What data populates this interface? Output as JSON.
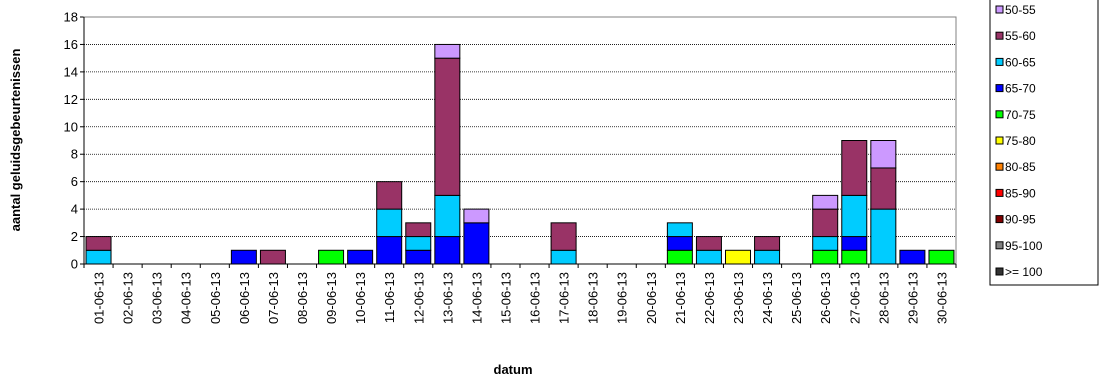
{
  "chart_data": {
    "type": "bar",
    "stacked": true,
    "title": "",
    "xlabel": "datum",
    "ylabel": "aantal geluidsgebeurtenissen",
    "ylim": [
      0,
      18
    ],
    "yticks": [
      0,
      2,
      4,
      6,
      8,
      10,
      12,
      14,
      16,
      18
    ],
    "grid": true,
    "legend_position": "right",
    "categories": [
      "01-06-13",
      "02-06-13",
      "03-06-13",
      "04-06-13",
      "05-06-13",
      "06-06-13",
      "07-06-13",
      "08-06-13",
      "09-06-13",
      "10-06-13",
      "11-06-13",
      "12-06-13",
      "13-06-13",
      "14-06-13",
      "15-06-13",
      "16-06-13",
      "17-06-13",
      "18-06-13",
      "19-06-13",
      "20-06-13",
      "21-06-13",
      "22-06-13",
      "23-06-13",
      "24-06-13",
      "25-06-13",
      "26-06-13",
      "27-06-13",
      "28-06-13",
      "29-06-13",
      "30-06-13"
    ],
    "series": [
      {
        "name": ">= 100",
        "color": "#333333",
        "values": [
          0,
          0,
          0,
          0,
          0,
          0,
          0,
          0,
          0,
          0,
          0,
          0,
          0,
          0,
          0,
          0,
          0,
          0,
          0,
          0,
          0,
          0,
          0,
          0,
          0,
          0,
          0,
          0,
          0,
          0
        ]
      },
      {
        "name": "95-100",
        "color": "#808080",
        "values": [
          0,
          0,
          0,
          0,
          0,
          0,
          0,
          0,
          0,
          0,
          0,
          0,
          0,
          0,
          0,
          0,
          0,
          0,
          0,
          0,
          0,
          0,
          0,
          0,
          0,
          0,
          0,
          0,
          0,
          0
        ]
      },
      {
        "name": "90-95",
        "color": "#800000",
        "values": [
          0,
          0,
          0,
          0,
          0,
          0,
          0,
          0,
          0,
          0,
          0,
          0,
          0,
          0,
          0,
          0,
          0,
          0,
          0,
          0,
          0,
          0,
          0,
          0,
          0,
          0,
          0,
          0,
          0,
          0
        ]
      },
      {
        "name": "85-90",
        "color": "#ff0000",
        "values": [
          0,
          0,
          0,
          0,
          0,
          0,
          0,
          0,
          0,
          0,
          0,
          0,
          0,
          0,
          0,
          0,
          0,
          0,
          0,
          0,
          0,
          0,
          0,
          0,
          0,
          0,
          0,
          0,
          0,
          0
        ]
      },
      {
        "name": "80-85",
        "color": "#ff8000",
        "values": [
          0,
          0,
          0,
          0,
          0,
          0,
          0,
          0,
          0,
          0,
          0,
          0,
          0,
          0,
          0,
          0,
          0,
          0,
          0,
          0,
          0,
          0,
          0,
          0,
          0,
          0,
          0,
          0,
          0,
          0
        ]
      },
      {
        "name": "75-80",
        "color": "#ffff00",
        "values": [
          0,
          0,
          0,
          0,
          0,
          0,
          0,
          0,
          0,
          0,
          0,
          0,
          0,
          0,
          0,
          0,
          0,
          0,
          0,
          0,
          0,
          0,
          1,
          0,
          0,
          0,
          0,
          0,
          0,
          0
        ]
      },
      {
        "name": "70-75",
        "color": "#00ff00",
        "values": [
          0,
          0,
          0,
          0,
          0,
          0,
          0,
          0,
          1,
          0,
          0,
          0,
          0,
          0,
          0,
          0,
          0,
          0,
          0,
          0,
          1,
          0,
          0,
          0,
          0,
          1,
          1,
          0,
          0,
          1
        ]
      },
      {
        "name": "65-70",
        "color": "#0000ff",
        "values": [
          0,
          0,
          0,
          0,
          0,
          1,
          0,
          0,
          0,
          1,
          2,
          1,
          2,
          3,
          0,
          0,
          0,
          0,
          0,
          0,
          1,
          0,
          0,
          0,
          0,
          0,
          1,
          0,
          1,
          0
        ]
      },
      {
        "name": "60-65",
        "color": "#00ccff",
        "values": [
          1,
          0,
          0,
          0,
          0,
          0,
          0,
          0,
          0,
          0,
          2,
          1,
          3,
          0,
          0,
          0,
          1,
          0,
          0,
          0,
          1,
          1,
          0,
          1,
          0,
          1,
          3,
          4,
          0,
          0
        ]
      },
      {
        "name": "55-60",
        "color": "#993366",
        "values": [
          1,
          0,
          0,
          0,
          0,
          0,
          1,
          0,
          0,
          0,
          2,
          1,
          10,
          0,
          0,
          0,
          2,
          0,
          0,
          0,
          0,
          1,
          0,
          1,
          0,
          2,
          4,
          3,
          0,
          0
        ]
      },
      {
        "name": "50-55",
        "color": "#cc99ff",
        "values": [
          0,
          0,
          0,
          0,
          0,
          0,
          0,
          0,
          0,
          0,
          0,
          0,
          1,
          1,
          0,
          0,
          0,
          0,
          0,
          0,
          0,
          0,
          0,
          0,
          0,
          1,
          0,
          2,
          0,
          0
        ]
      }
    ]
  }
}
